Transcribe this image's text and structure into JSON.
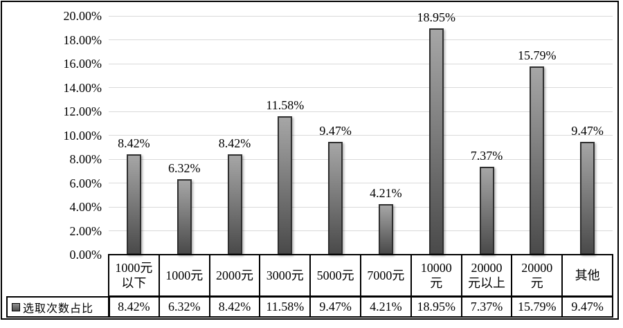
{
  "chart_data": {
    "type": "bar",
    "title": "",
    "categories": [
      "1000元以下",
      "1000元",
      "2000元",
      "3000元",
      "5000元",
      "7000元",
      "10000元",
      "20000元以上",
      "20000元",
      "其他"
    ],
    "categories_display": [
      [
        "1000元",
        "以下"
      ],
      [
        "1000元"
      ],
      [
        "2000元"
      ],
      [
        "3000元"
      ],
      [
        "5000元"
      ],
      [
        "7000元"
      ],
      [
        "10000",
        "元"
      ],
      [
        "20000",
        "元以上"
      ],
      [
        "20000",
        "元"
      ],
      [
        "其他"
      ]
    ],
    "series": [
      {
        "name": "选取次数占比",
        "values": [
          8.42,
          6.32,
          8.42,
          11.58,
          9.47,
          4.21,
          18.95,
          7.37,
          15.79,
          9.47
        ]
      }
    ],
    "bar_value_labels": [
      "8.42%",
      "6.32%",
      "8.42%",
      "11.58%",
      "9.47%",
      "4.21%",
      "18.95%",
      "7.37%",
      "15.79%",
      "9.47%"
    ],
    "table_row_values": [
      "8.42%",
      "6.32%",
      "8.42%",
      "11.58%",
      "9.47%",
      "4.21%",
      "18.95%",
      "7.37%",
      "15.79%",
      "9.47%"
    ],
    "y_axis": {
      "ticks": [
        "20.00%",
        "18.00%",
        "16.00%",
        "14.00%",
        "12.00%",
        "10.00%",
        "8.00%",
        "6.00%",
        "4.00%",
        "2.00%",
        "0.00%"
      ]
    },
    "ylim": [
      0,
      20
    ],
    "y_step": 2,
    "grid": true,
    "legend_position": "bottom-left-table",
    "colors": {
      "bar_gradient_top": "#a6a6a6",
      "bar_gradient_bottom": "#4a4a4a",
      "bar_border": "#2f2f2f",
      "gridline": "#d9d9d9",
      "text": "#000000",
      "table_border": "#000000",
      "background": "#ffffff"
    }
  }
}
